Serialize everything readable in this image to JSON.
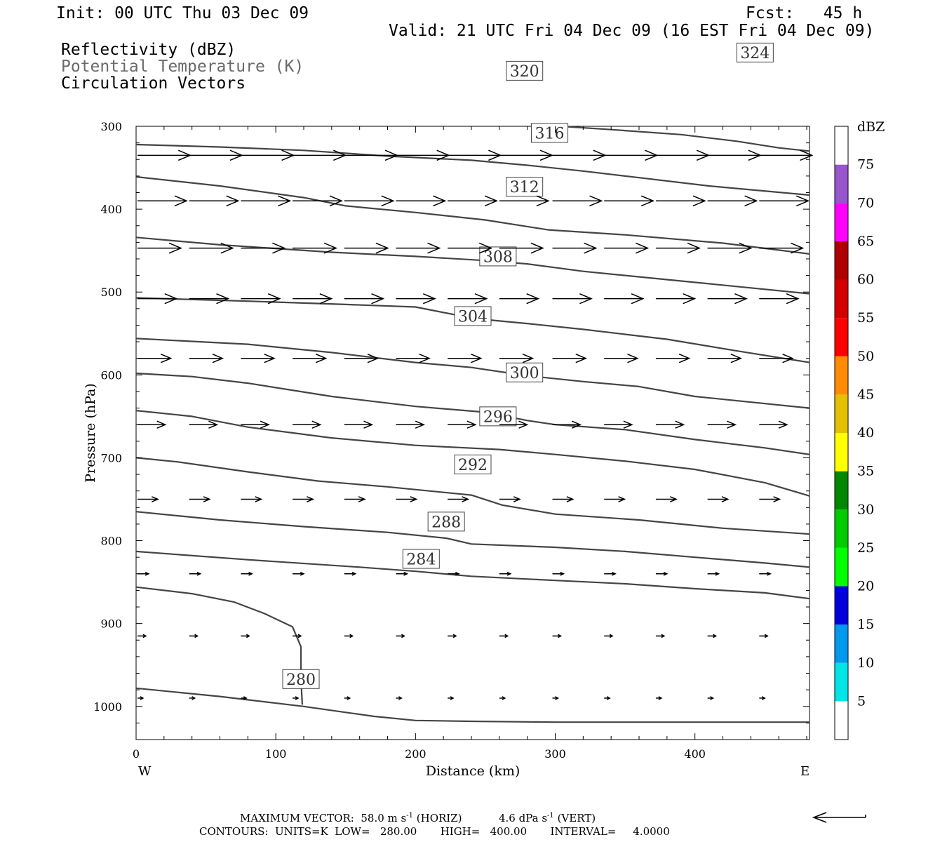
{
  "header": {
    "init": "Init: 00 UTC Thu 03 Dec 09",
    "fcst": "Fcst:   45 h",
    "valid": "Valid: 21 UTC Fri 04 Dec 09 (16 EST Fri 04 Dec 09)"
  },
  "fields": [
    "Reflectivity (dBZ)",
    "Potential Temperature (K)",
    "Circulation Vectors"
  ],
  "footer": {
    "max_vector_label": "MAXIMUM VECTOR:",
    "max_vector_horiz": "58.0 m s",
    "horiz_tag": "(HORIZ)",
    "max_vector_vert": "4.6 dPa s",
    "vert_tag": "(VERT)",
    "exp": "-1",
    "contours": "CONTOURS:  UNITS=K  LOW=   280.00       HIGH=   400.00       INTERVAL=     4.0000"
  },
  "chart_data": {
    "type": "line",
    "xlabel": "Distance (km)",
    "ylabel": "Pressure (hPa)",
    "xlim": [
      0,
      482
    ],
    "ylim": [
      300,
      1040
    ],
    "x_ticks": [
      0,
      100,
      200,
      300,
      400
    ],
    "y_ticks": [
      300,
      400,
      500,
      600,
      700,
      800,
      900,
      1000
    ],
    "x_end_labels": {
      "left": "W",
      "right": "E"
    },
    "theta_color": "#444444",
    "vector_color": "#000000",
    "theta_contours": [
      {
        "label": "280",
        "points": [
          [
            0,
            978
          ],
          [
            60,
            988
          ],
          [
            120,
            1000
          ],
          [
            170,
            1012
          ],
          [
            200,
            1017
          ],
          [
            240,
            1018
          ],
          [
            300,
            1019
          ],
          [
            482,
            1019
          ]
        ]
      },
      {
        "label": "280",
        "points": [
          [
            0,
            856
          ],
          [
            40,
            864
          ],
          [
            70,
            874
          ],
          [
            92,
            888
          ],
          [
            112,
            904
          ],
          [
            118,
            928
          ],
          [
            118,
            968
          ],
          [
            119,
            998
          ]
        ],
        "label_at": [
          118,
          967
        ]
      },
      {
        "label": "284",
        "points": [
          [
            0,
            813
          ],
          [
            80,
            823
          ],
          [
            160,
            832
          ],
          [
            200,
            837
          ],
          [
            240,
            843
          ],
          [
            300,
            848
          ],
          [
            350,
            852
          ],
          [
            400,
            858
          ],
          [
            450,
            863
          ],
          [
            482,
            870
          ]
        ],
        "label_at": [
          204,
          822
        ]
      },
      {
        "label": "288",
        "points": [
          [
            0,
            765
          ],
          [
            60,
            775
          ],
          [
            120,
            783
          ],
          [
            180,
            790
          ],
          [
            222,
            797
          ],
          [
            240,
            804
          ],
          [
            300,
            808
          ],
          [
            350,
            813
          ],
          [
            400,
            820
          ],
          [
            450,
            827
          ],
          [
            482,
            832
          ]
        ],
        "label_at": [
          222,
          777
        ]
      },
      {
        "label": "292",
        "points": [
          [
            0,
            700
          ],
          [
            30,
            705
          ],
          [
            80,
            717
          ],
          [
            130,
            728
          ],
          [
            180,
            735
          ],
          [
            240,
            745
          ],
          [
            262,
            757
          ],
          [
            300,
            768
          ],
          [
            360,
            775
          ],
          [
            420,
            785
          ],
          [
            482,
            792
          ]
        ],
        "label_at": [
          241,
          708
        ]
      },
      {
        "label": "296",
        "points": [
          [
            0,
            643
          ],
          [
            40,
            650
          ],
          [
            80,
            663
          ],
          [
            140,
            676
          ],
          [
            200,
            685
          ],
          [
            260,
            690
          ],
          [
            300,
            696
          ],
          [
            350,
            704
          ],
          [
            400,
            714
          ],
          [
            450,
            730
          ],
          [
            482,
            746
          ]
        ],
        "label_at": [
          259,
          650
        ]
      },
      {
        "label": "300",
        "points": [
          [
            0,
            598
          ],
          [
            40,
            602
          ],
          [
            80,
            610
          ],
          [
            140,
            626
          ],
          [
            200,
            638
          ],
          [
            250,
            645
          ],
          [
            280,
            655
          ],
          [
            300,
            660
          ],
          [
            350,
            666
          ],
          [
            400,
            678
          ],
          [
            450,
            688
          ],
          [
            482,
            696
          ]
        ],
        "label_at": [
          278,
          597
        ]
      },
      {
        "label": "304",
        "points": [
          [
            0,
            556
          ],
          [
            80,
            563
          ],
          [
            140,
            573
          ],
          [
            200,
            585
          ],
          [
            240,
            591
          ],
          [
            280,
            601
          ],
          [
            320,
            608
          ],
          [
            360,
            614
          ],
          [
            400,
            626
          ],
          [
            482,
            640
          ]
        ],
        "label_at": [
          241,
          529
        ]
      },
      {
        "label": "308",
        "points": [
          [
            0,
            507
          ],
          [
            80,
            511
          ],
          [
            150,
            515
          ],
          [
            200,
            518
          ],
          [
            242,
            532
          ],
          [
            280,
            538
          ],
          [
            320,
            545
          ],
          [
            380,
            557
          ],
          [
            430,
            571
          ],
          [
            482,
            585
          ]
        ],
        "label_at": [
          259,
          457
        ]
      },
      {
        "label": "312",
        "points": [
          [
            0,
            434
          ],
          [
            60,
            443
          ],
          [
            140,
            452
          ],
          [
            200,
            457
          ],
          [
            250,
            462
          ],
          [
            280,
            466
          ],
          [
            320,
            475
          ],
          [
            380,
            485
          ],
          [
            440,
            495
          ],
          [
            482,
            502
          ]
        ],
        "label_at": [
          278,
          373
        ]
      },
      {
        "label": "316",
        "points": [
          [
            0,
            361
          ],
          [
            60,
            372
          ],
          [
            120,
            386
          ],
          [
            150,
            396
          ],
          [
            200,
            404
          ],
          [
            250,
            413
          ],
          [
            295,
            425
          ],
          [
            350,
            431
          ],
          [
            420,
            441
          ],
          [
            482,
            454
          ]
        ],
        "label_at": [
          296,
          308
        ]
      },
      {
        "label": "320",
        "points": [
          [
            0,
            322
          ],
          [
            60,
            325
          ],
          [
            120,
            329
          ],
          [
            180,
            336
          ],
          [
            240,
            341
          ],
          [
            280,
            347
          ],
          [
            320,
            354
          ],
          [
            360,
            362
          ],
          [
            410,
            372
          ],
          [
            482,
            383
          ]
        ],
        "label_at": [
          278,
          233
        ]
      },
      {
        "label": "324",
        "points": [
          [
            304,
            300
          ],
          [
            340,
            304
          ],
          [
            390,
            310
          ],
          [
            430,
            318
          ],
          [
            460,
            326
          ],
          [
            482,
            330
          ]
        ],
        "label_at": [
          443,
          211
        ]
      }
    ],
    "vectors": {
      "x": [
        0,
        37,
        74,
        111,
        148,
        185,
        222,
        259,
        297,
        334,
        371,
        408,
        445
      ],
      "rows": [
        {
          "p": 335,
          "u": [
            57,
            57,
            57,
            57,
            57,
            57,
            57,
            57,
            57,
            57,
            57,
            57,
            57
          ],
          "w": [
            0,
            0,
            0,
            0,
            0,
            0,
            0,
            0,
            0,
            0,
            0,
            0,
            0
          ]
        },
        {
          "p": 390,
          "u": [
            53,
            53,
            53,
            53,
            53,
            53,
            53,
            53,
            53,
            53,
            53,
            53,
            53
          ],
          "w": [
            0,
            0,
            0,
            0,
            0,
            0,
            0,
            0,
            0,
            0,
            0,
            0,
            0
          ]
        },
        {
          "p": 447,
          "u": [
            47,
            47,
            47,
            47,
            47,
            47,
            47,
            47,
            47,
            47,
            47,
            47,
            47
          ],
          "w": [
            0,
            0,
            0,
            0,
            0,
            0,
            0,
            0,
            0,
            0,
            0,
            0,
            0
          ]
        },
        {
          "p": 508,
          "u": [
            42,
            42,
            42,
            42,
            42,
            42,
            42,
            42,
            42,
            42,
            42,
            42,
            42
          ],
          "w": [
            0,
            0,
            0,
            0,
            0,
            0,
            0,
            0,
            0,
            0,
            0,
            0,
            0
          ]
        },
        {
          "p": 580,
          "u": [
            36,
            36,
            36,
            36,
            36,
            36,
            36,
            36,
            36,
            36,
            36,
            36,
            36
          ],
          "w": [
            0,
            0,
            0,
            0,
            0,
            0,
            0,
            0,
            0,
            0,
            0,
            0,
            0
          ]
        },
        {
          "p": 660,
          "u": [
            30,
            30,
            30,
            30,
            30,
            30,
            30,
            30,
            30,
            30,
            30,
            30,
            30
          ],
          "w": [
            0,
            0,
            0,
            0,
            0,
            0,
            0,
            0,
            0,
            0,
            0,
            0,
            0
          ]
        },
        {
          "p": 750,
          "u": [
            22,
            22,
            22,
            22,
            22,
            22,
            22,
            22,
            22,
            22,
            22,
            22,
            22
          ],
          "w": [
            0,
            0,
            0,
            0,
            0,
            0,
            0,
            0,
            0,
            0,
            0,
            0,
            0
          ]
        },
        {
          "p": 840,
          "u": [
            12,
            12,
            12,
            12,
            12,
            12,
            12,
            12,
            12,
            12,
            12,
            12,
            12
          ],
          "w": [
            0,
            0,
            0,
            0,
            0,
            0,
            0,
            0,
            0,
            0,
            0,
            0,
            0
          ]
        },
        {
          "p": 915,
          "u": [
            9,
            9,
            9,
            9,
            9,
            9,
            9,
            9,
            9,
            9,
            9,
            9,
            9
          ],
          "w": [
            0,
            0,
            0,
            0,
            0,
            0,
            0,
            0,
            0,
            0,
            0,
            0,
            0
          ]
        },
        {
          "p": 990,
          "u": [
            6,
            6,
            6,
            6,
            6,
            6,
            6,
            6,
            6,
            6,
            6,
            6,
            6
          ],
          "w": [
            0,
            0,
            0,
            0,
            0,
            0,
            0,
            0,
            0,
            0,
            0,
            0,
            0
          ]
        }
      ]
    },
    "colorbar": {
      "unit": "dBZ",
      "ticks": [
        "5",
        "10",
        "15",
        "20",
        "25",
        "30",
        "35",
        "40",
        "45",
        "50",
        "55",
        "60",
        "65",
        "70",
        "75"
      ],
      "colors": [
        "#ffffff",
        "#00e5e5",
        "#0099ee",
        "#0000dd",
        "#00ff00",
        "#00cc00",
        "#008800",
        "#ffff00",
        "#e5c000",
        "#ff8c00",
        "#ff0000",
        "#d40000",
        "#b00000",
        "#ff00ff",
        "#9955cc",
        "#ffffff"
      ]
    },
    "reference_vector_direction": "left"
  }
}
